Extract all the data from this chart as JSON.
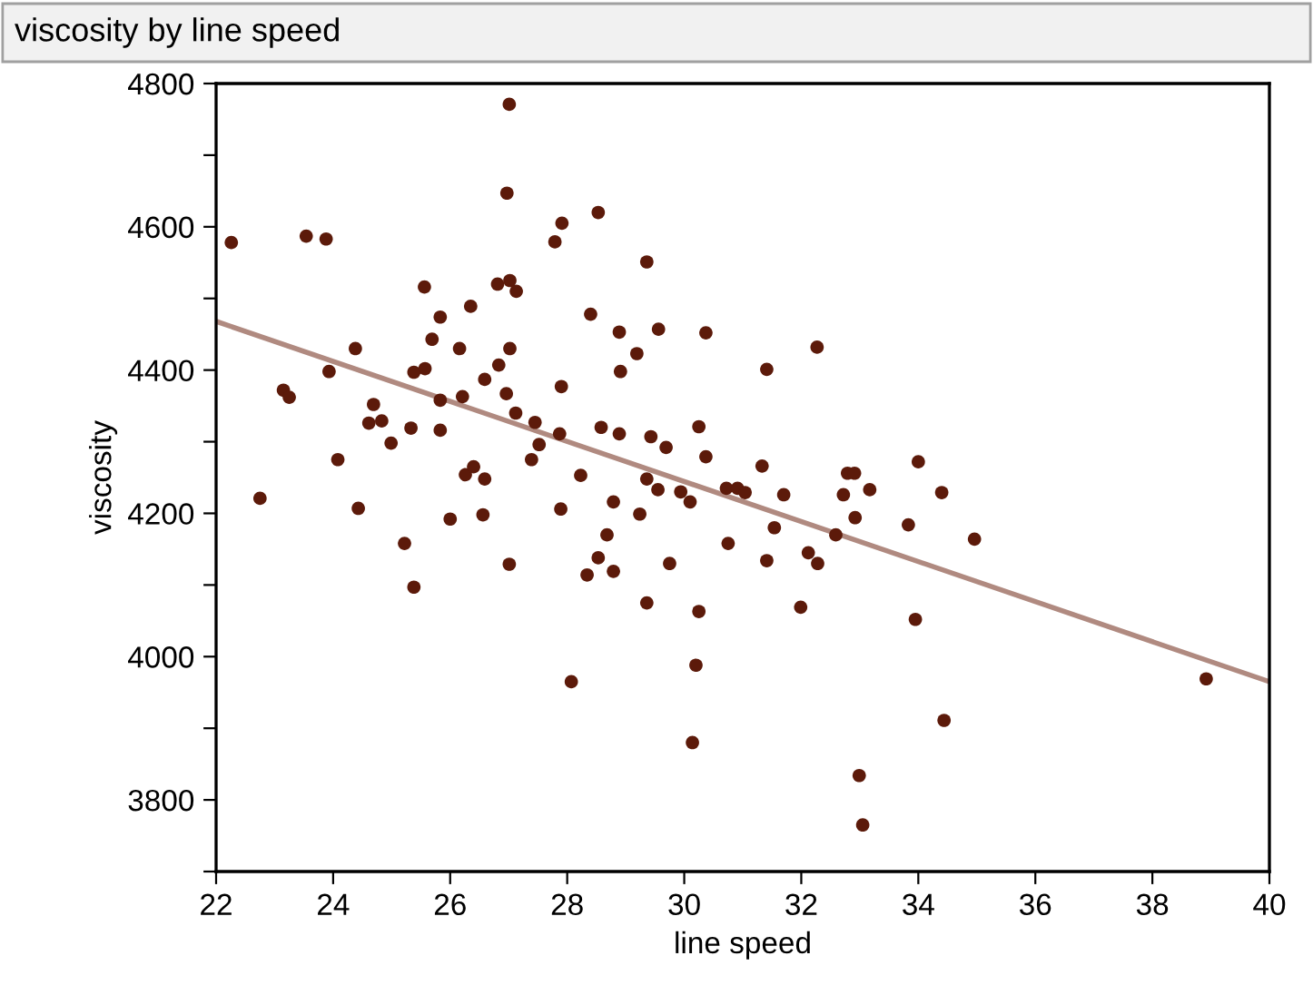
{
  "chart_data": {
    "type": "scatter",
    "title": "viscosity by line speed",
    "xlabel": "line speed",
    "ylabel": "viscosity",
    "xlim": [
      22,
      40
    ],
    "xticks": [
      22,
      24,
      26,
      28,
      30,
      32,
      34,
      36,
      38,
      40
    ],
    "ylim": [
      3700,
      4800
    ],
    "yticks": [
      {
        "value": 3700,
        "label": null
      },
      3800,
      {
        "value": 3900,
        "label": null
      },
      4000,
      {
        "value": 4100,
        "label": null
      },
      4200,
      {
        "value": 4300,
        "label": null
      },
      4400,
      {
        "value": 4500,
        "label": null
      },
      4600,
      {
        "value": 4700,
        "label": null
      },
      4800
    ],
    "grid": false,
    "legend": false,
    "marker": "circle",
    "series": [
      {
        "color": "#5c1a0a",
        "x": [
          22.26,
          23.54,
          23.88,
          24.38,
          23.93,
          23.15,
          23.25,
          24.08,
          24.69,
          24.61,
          24.83,
          24.99,
          25.33,
          25.38,
          25.57,
          25.56,
          25.83,
          25.69,
          25.83,
          25.83,
          26.16,
          26.21,
          26.35,
          26.26,
          26.4,
          26.59,
          26.59,
          26.83,
          26.81,
          27.02,
          27.13,
          26.97,
          27.01,
          26.96,
          27.02,
          27.12,
          27.45,
          27.52,
          27.39,
          27.79,
          27.91,
          27.9,
          27.87,
          22.75,
          24.43,
          25.22,
          25.38,
          26.0,
          26.56,
          27.01,
          27.89,
          28.53,
          29.36,
          28.4,
          28.89,
          29.56,
          30.37,
          29.19,
          28.91,
          31.41,
          32.27,
          28.58,
          28.89,
          29.43,
          29.69,
          30.25,
          30.37,
          28.23,
          29.36,
          31.33,
          32.79,
          32.91,
          34.0,
          28.79,
          28.68,
          28.53,
          28.34,
          28.79,
          29.24,
          29.55,
          29.94,
          30.1,
          29.75,
          29.36,
          30.25,
          30.2,
          30.14,
          28.07,
          30.75,
          30.72,
          30.91,
          31.04,
          31.7,
          31.54,
          31.41,
          32.12,
          32.28,
          31.99,
          32.59,
          32.72,
          33.17,
          32.92,
          33.83,
          33.95,
          34.4,
          34.44,
          32.99,
          33.05,
          34.96,
          38.92
        ],
        "values": [
          4578,
          4587,
          4583,
          4430,
          4398,
          4372,
          4362,
          4275,
          4352,
          4326,
          4329,
          4298,
          4319,
          4397,
          4402,
          4516,
          4474,
          4443,
          4358,
          4316,
          4430,
          4363,
          4489,
          4254,
          4265,
          4248,
          4387,
          4407,
          4520,
          4525,
          4510,
          4647,
          4771,
          4367,
          4430,
          4340,
          4327,
          4296,
          4275,
          4579,
          4605,
          4377,
          4311,
          4221,
          4207,
          4158,
          4097,
          4192,
          4198,
          4129,
          4206,
          4620,
          4551,
          4478,
          4453,
          4457,
          4452,
          4423,
          4398,
          4401,
          4432,
          4320,
          4311,
          4307,
          4292,
          4321,
          4279,
          4253,
          4248,
          4266,
          4256,
          4256,
          4272,
          4216,
          4170,
          4138,
          4114,
          4119,
          4199,
          4233,
          4230,
          4216,
          4130,
          4075,
          4063,
          3988,
          3880,
          3965,
          4158,
          4235,
          4235,
          4229,
          4226,
          4180,
          4134,
          4145,
          4130,
          4069,
          4170,
          4226,
          4233,
          4194,
          4184,
          4052,
          4229,
          3911,
          3834,
          3765,
          4164,
          3969
        ]
      },
      {
        "type": "line",
        "color": "#b08a80",
        "marker": "none",
        "line_style": "solid",
        "x": [
          22,
          40
        ],
        "values": [
          4468,
          3965
        ]
      }
    ]
  }
}
